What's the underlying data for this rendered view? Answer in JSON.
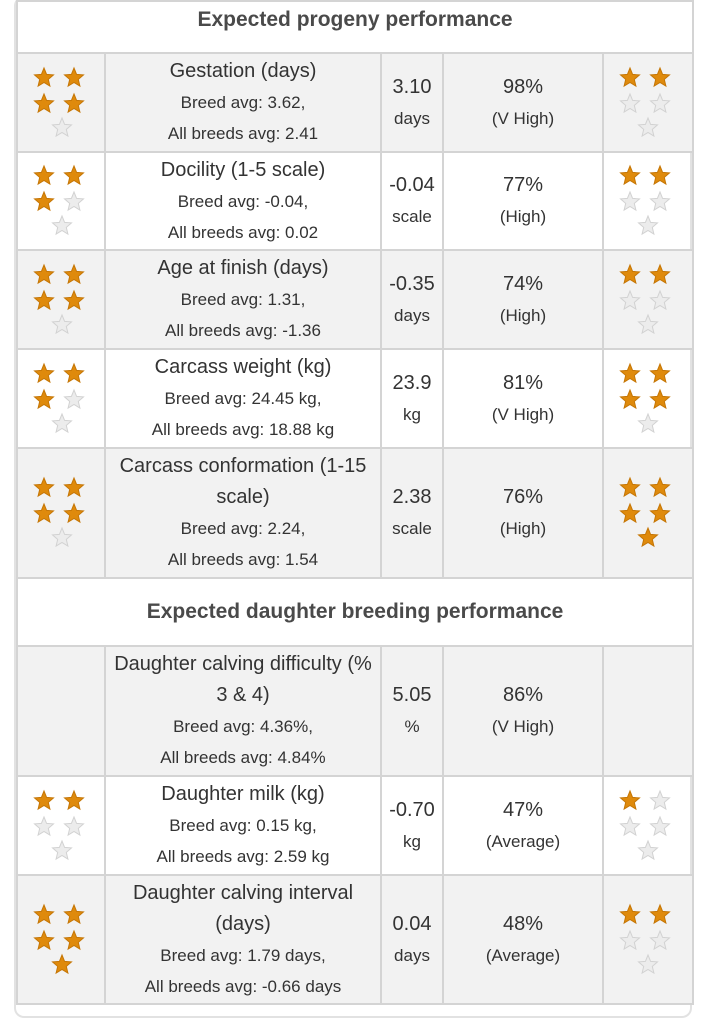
{
  "sections": [
    {
      "title": "Expected progeny performance",
      "rows": [
        {
          "trait": "Gestation (days)",
          "breed_avg": "Breed avg: 3.62,",
          "all_breeds_avg": "All breeds avg: 2.41",
          "value": "3.10",
          "unit": "days",
          "reliability": "98%",
          "reliability_label": "(V High)",
          "stars_left": 4,
          "stars_right": 2
        },
        {
          "trait": "Docility (1-5 scale)",
          "breed_avg": "Breed avg: -0.04,",
          "all_breeds_avg": "All breeds avg: 0.02",
          "value": "-0.04",
          "unit": "scale",
          "reliability": "77%",
          "reliability_label": "(High)",
          "stars_left": 3,
          "stars_right": 2
        },
        {
          "trait": "Age at finish (days)",
          "breed_avg": "Breed avg: 1.31,",
          "all_breeds_avg": "All breeds avg: -1.36",
          "value": "-0.35",
          "unit": "days",
          "reliability": "74%",
          "reliability_label": "(High)",
          "stars_left": 4,
          "stars_right": 2
        },
        {
          "trait": "Carcass weight (kg)",
          "breed_avg": "Breed avg: 24.45 kg,",
          "all_breeds_avg": "All breeds avg: 18.88 kg",
          "value": "23.9",
          "unit": "kg",
          "reliability": "81%",
          "reliability_label": "(V High)",
          "stars_left": 3,
          "stars_right": 4
        },
        {
          "trait": "Carcass conformation (1-15 scale)",
          "breed_avg": "Breed avg: 2.24,",
          "all_breeds_avg": "All breeds avg: 1.54",
          "value": "2.38",
          "unit": "scale",
          "reliability": "76%",
          "reliability_label": "(High)",
          "stars_left": 4,
          "stars_right": 5
        }
      ]
    },
    {
      "title": "Expected daughter breeding performance",
      "rows": [
        {
          "trait": "Daughter calving difficulty (% 3 & 4)",
          "breed_avg": "Breed avg: 4.36%,",
          "all_breeds_avg": "All breeds avg: 4.84%",
          "value": "5.05",
          "unit": "%",
          "reliability": "86%",
          "reliability_label": "(V High)",
          "stars_left": null,
          "stars_right": null
        },
        {
          "trait": "Daughter milk (kg)",
          "breed_avg": "Breed avg: 0.15 kg,",
          "all_breeds_avg": "All breeds avg: 2.59 kg",
          "value": "-0.70",
          "unit": "kg",
          "reliability": "47%",
          "reliability_label": "(Average)",
          "stars_left": 2,
          "stars_right": 1
        },
        {
          "trait": "Daughter calving interval (days)",
          "breed_avg": "Breed avg: 1.79 days,",
          "all_breeds_avg": "All breeds avg: -0.66 days",
          "value": "0.04",
          "unit": "days",
          "reliability": "48%",
          "reliability_label": "(Average)",
          "stars_left": 5,
          "stars_right": 2
        }
      ]
    }
  ]
}
